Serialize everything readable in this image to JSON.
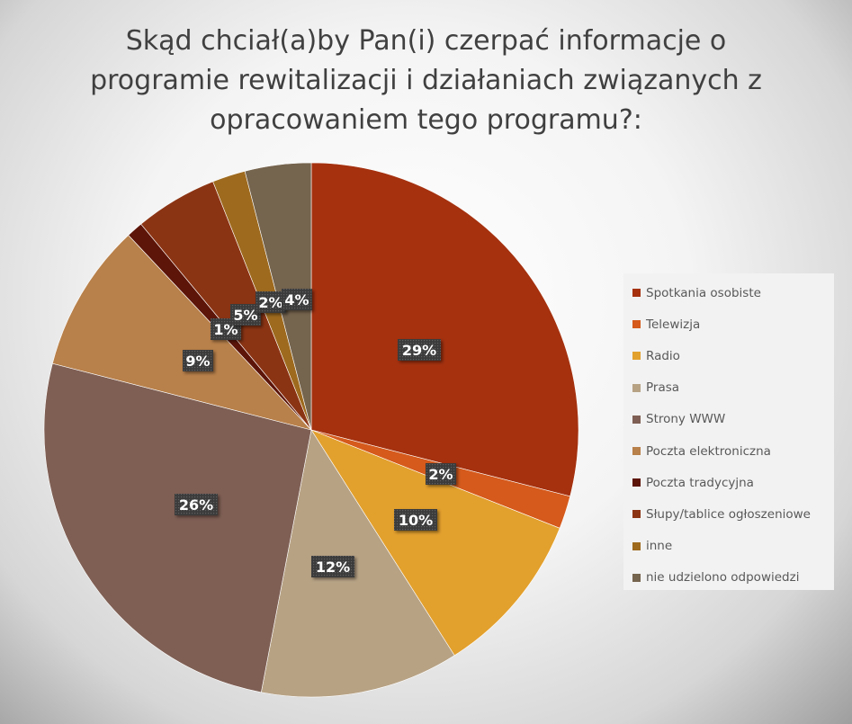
{
  "chart_data": {
    "type": "pie",
    "title_lines": [
      "Skąd chciał(a)by Pan(i) czerpać informacje o",
      "programie rewitalizacji i działaniach związanych z",
      "opracowaniem tego programu?:"
    ],
    "legend_position": "right",
    "slices": [
      {
        "label": "Spotkania osobiste",
        "value": 29,
        "display": "29%",
        "color": "#a5310f"
      },
      {
        "label": "Telewizja",
        "value": 2,
        "display": "2%",
        "color": "#d55a1c"
      },
      {
        "label": "Radio",
        "value": 10,
        "display": "10%",
        "color": "#e2a02d"
      },
      {
        "label": "Prasa",
        "value": 12,
        "display": "12%",
        "color": "#b7a284"
      },
      {
        "label": "Strony WWW",
        "value": 26,
        "display": "26%",
        "color": "#7f5f54"
      },
      {
        "label": "Poczta elektroniczna",
        "value": 9,
        "display": "9%",
        "color": "#b8804a"
      },
      {
        "label": "Poczta tradycyjna",
        "value": 1,
        "display": "1%",
        "color": "#5d1509"
      },
      {
        "label": "Słupy/tablice ogłoszeniowe",
        "value": 5,
        "display": "5%",
        "color": "#8b3414"
      },
      {
        "label": "inne",
        "value": 2,
        "display": "2%",
        "color": "#9e6a1e"
      },
      {
        "label": "nie udzielono odpowiedzi",
        "value": 4,
        "display": "4%",
        "color": "#75644e"
      }
    ]
  }
}
